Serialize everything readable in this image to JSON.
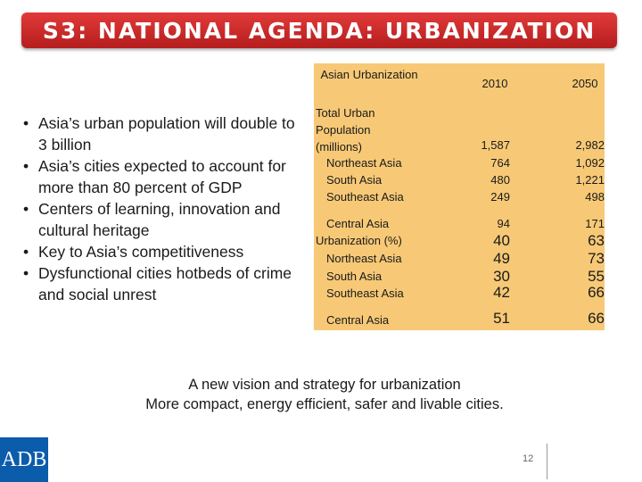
{
  "slide": {
    "title": "S3: NATIONAL AGENDA: URBANIZATION",
    "bullets": [
      "Asia’s urban population will double to 3 billion",
      "Asia’s cities expected to account for more than 80 percent of GDP",
      "Centers of learning, innovation and cultural heritage",
      "Key to Asia’s competitiveness",
      "Dysfunctional cities hotbeds of crime and social unrest"
    ],
    "bullet_marker": "•",
    "table": {
      "header": {
        "label": "Asian Urbanization",
        "col_2010": "2010",
        "col_2050": "2050"
      },
      "section1": {
        "label": "Total Urban Population (millions)",
        "v2010": "1,587",
        "v2050": "2,982"
      },
      "section1_rows": [
        {
          "label": "Northeast Asia",
          "v2010": "764",
          "v2050": "1,092"
        },
        {
          "label": "South Asia",
          "v2010": "480",
          "v2050": "1,221"
        },
        {
          "label": "Southeast Asia",
          "v2010": "249",
          "v2050": "498"
        },
        {
          "label": "Central Asia",
          "v2010": "94",
          "v2050": "171"
        }
      ],
      "section2": {
        "label": "Urbanization (%)",
        "v2010": "40",
        "v2050": "63"
      },
      "section2_rows": [
        {
          "label": "Northeast Asia",
          "v2010": "49",
          "v2050": "73"
        },
        {
          "label": "South Asia",
          "v2010": "30",
          "v2050": "55"
        },
        {
          "label": "Southeast Asia",
          "v2010": "42",
          "v2050": "66"
        },
        {
          "label": "Central Asia",
          "v2010": "51",
          "v2050": "66"
        }
      ]
    },
    "footer_line1": "A new vision and strategy for urbanization",
    "footer_line2": "More compact, energy efficient, safer and livable cities.",
    "logo_text": "ADB",
    "page_number": "12",
    "colors": {
      "title_bar": "#c92525",
      "table_bg": "#f7c976",
      "logo_bg": "#0b5cab"
    }
  }
}
